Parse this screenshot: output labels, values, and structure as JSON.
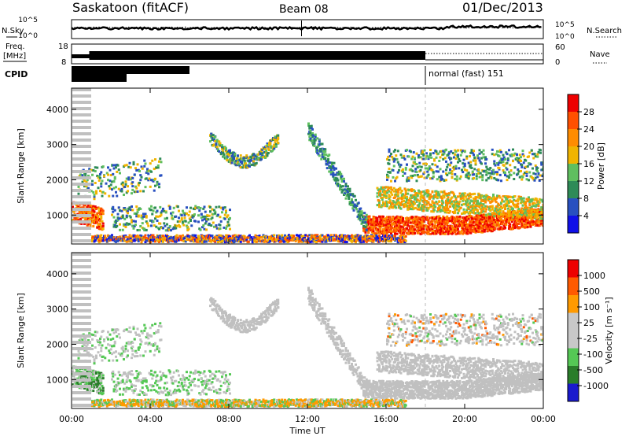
{
  "header": {
    "station": "Saskatoon (fitACF)",
    "beam": "Beam 08",
    "date": "01/Dec/2013"
  },
  "strip_labels": {
    "nsky": "N.Sky",
    "nsearch": "N.Search",
    "freq_line1": "Freq.",
    "freq_line2": "[MHz]",
    "nave": "Nave",
    "cpid": "CPID",
    "cpid_mode": "normal (fast) 151"
  },
  "strip_ticks": {
    "noise_top_left": "10^5",
    "noise_bottom_left": "10^0",
    "noise_top_right": "10^5",
    "noise_bottom_right": "10^0",
    "freq_top": "18",
    "freq_bottom": "8",
    "nave_top": "60",
    "nave_bottom": "0"
  },
  "colors": {
    "power_scale": [
      "#1010e8",
      "#2850c0",
      "#2e8b57",
      "#5fbf5f",
      "#f0b400",
      "#ff8c00",
      "#ff5000",
      "#ee0000"
    ],
    "velocity_scale": [
      "#1a1acd",
      "#2a7d2a",
      "#55c855",
      "#c8c8c8",
      "#c8c8c8",
      "#ff9a00",
      "#ff5a00",
      "#ee0000"
    ],
    "groundscatter": "#c0c0c0"
  },
  "chart_data": {
    "type": "heatmap",
    "x_ticks": [
      "00:00",
      "04:00",
      "08:00",
      "12:00",
      "16:00",
      "20:00",
      "00:00"
    ],
    "x_range_hours": [
      0,
      24
    ],
    "xlabel": "Time UT",
    "panels": [
      {
        "ylabel": "Slant Range [km]",
        "y_ticks": [
          "1000",
          "2000",
          "3000",
          "4000"
        ],
        "y_range_km": [
          180,
          4600
        ],
        "colorbar_label": "Power [dB]",
        "colorbar_ticks": [
          "4",
          "8",
          "12",
          "16",
          "20",
          "24",
          "28"
        ]
      },
      {
        "ylabel": "Slant Range [km]",
        "y_ticks": [
          "1000",
          "2000",
          "3000",
          "4000"
        ],
        "y_range_km": [
          180,
          4600
        ],
        "colorbar_label": "Velocity [m s⁻¹]",
        "colorbar_ticks": [
          "-1000",
          "-500",
          "-100",
          "-25",
          "25",
          "100",
          "500",
          "1000"
        ]
      }
    ]
  }
}
